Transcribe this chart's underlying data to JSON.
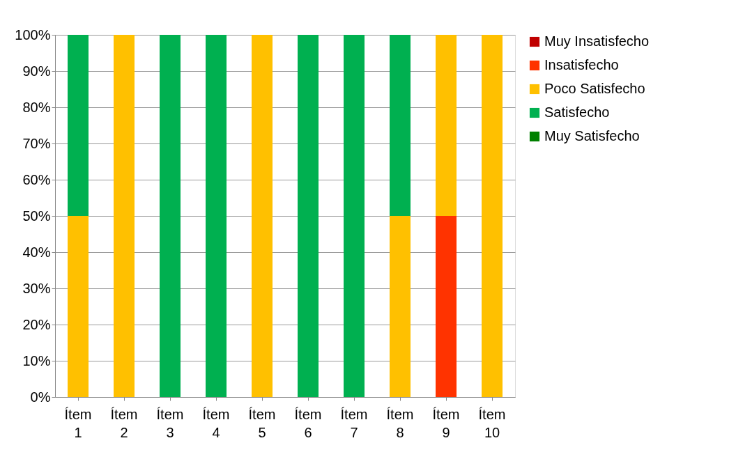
{
  "chart_data": {
    "type": "bar",
    "stacked": true,
    "categories": [
      "Ítem 1",
      "Ítem 2",
      "Ítem 3",
      "Ítem 4",
      "Ítem 5",
      "Ítem 6",
      "Ítem 7",
      "Ítem 8",
      "Ítem 9",
      "Ítem 10"
    ],
    "series": [
      {
        "name": "Muy Insatisfecho",
        "color": "#c00000",
        "values": [
          null,
          null,
          null,
          null,
          null,
          null,
          null,
          null,
          null,
          null
        ]
      },
      {
        "name": "Insatisfecho",
        "color": "#ff3300",
        "values": [
          null,
          null,
          null,
          null,
          null,
          null,
          null,
          null,
          50,
          null
        ]
      },
      {
        "name": "Poco Satisfecho",
        "color": "#ffc000",
        "values": [
          50,
          100,
          null,
          null,
          100,
          null,
          null,
          50,
          50,
          100
        ]
      },
      {
        "name": "Satisfecho",
        "color": "#00b050",
        "values": [
          50,
          null,
          100,
          100,
          null,
          100,
          100,
          50,
          null,
          null
        ]
      },
      {
        "name": "Muy Satisfecho",
        "color": "#008000",
        "values": [
          null,
          null,
          null,
          null,
          null,
          null,
          null,
          null,
          null,
          null
        ]
      }
    ],
    "ylim": [
      0,
      100
    ],
    "yticks": [
      {
        "value": 0,
        "label": "0%"
      },
      {
        "value": 10,
        "label": "10%"
      },
      {
        "value": 20,
        "label": "20%"
      },
      {
        "value": 30,
        "label": "30%"
      },
      {
        "value": 40,
        "label": "40%"
      },
      {
        "value": 50,
        "label": "50%"
      },
      {
        "value": 60,
        "label": "60%"
      },
      {
        "value": 70,
        "label": "70%"
      },
      {
        "value": 80,
        "label": "80%"
      },
      {
        "value": 90,
        "label": "90%"
      },
      {
        "value": 100,
        "label": "100%"
      }
    ],
    "grid": "y",
    "legend": "right"
  }
}
